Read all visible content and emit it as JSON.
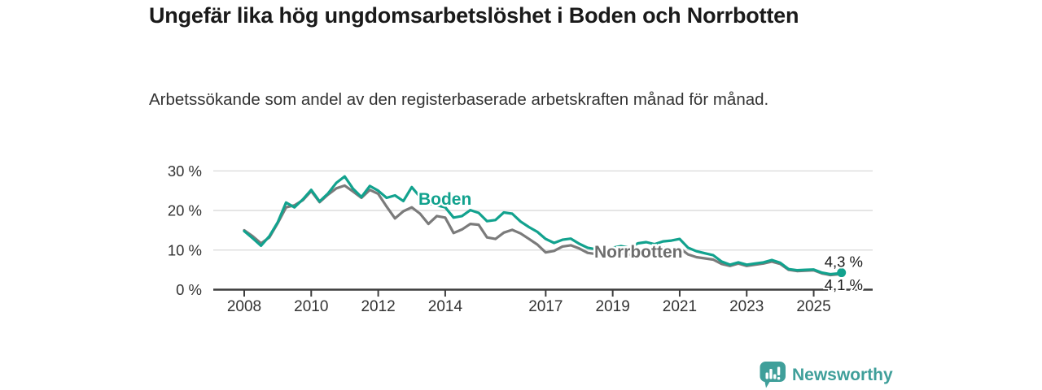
{
  "header": {
    "title": "Ungefär lika hög ungdomsarbetslöshet i Boden och Norrbotten",
    "subtitle": "Arbetssökande som andel av den registerbaserade arbetskraften månad för månad."
  },
  "chart_data": {
    "type": "line",
    "title": "Ungefär lika hög ungdomsarbetslöshet i Boden och Norrbotten",
    "subtitle": "Arbetssökande som andel av den registerbaserade arbetskraften månad för månad.",
    "xlabel": "",
    "ylabel": "",
    "ylim": [
      0,
      30
    ],
    "grid": true,
    "legend_position": "inline-labels",
    "y_ticks": [
      {
        "value": 0,
        "label": "0 %"
      },
      {
        "value": 10,
        "label": "10 %"
      },
      {
        "value": 20,
        "label": "20 %"
      },
      {
        "value": 30,
        "label": "30 %"
      }
    ],
    "x_ticks": [
      2008,
      2010,
      2012,
      2014,
      2017,
      2019,
      2021,
      2023,
      2025
    ],
    "x_range": [
      2008.0,
      2025.83
    ],
    "style": {
      "grid_color": "#d9d9d9",
      "axis_color": "#3d3d3d",
      "tick_label_color": "#333333",
      "end_label_color": "#1a1a1a",
      "label_halo_color": "#ffffff"
    },
    "series": [
      {
        "name": "Boden",
        "color": "#12a28e",
        "label_color": "#12a28e",
        "label_anchor": [
          2013.2,
          21.4
        ],
        "end_label": "4,3 %",
        "end_label_position": "above",
        "end_dot": true,
        "points": [
          [
            2008.0,
            14.8
          ],
          [
            2008.25,
            13.0
          ],
          [
            2008.5,
            11.1
          ],
          [
            2008.75,
            13.5
          ],
          [
            2009.0,
            17.0
          ],
          [
            2009.25,
            22.0
          ],
          [
            2009.5,
            20.8
          ],
          [
            2009.75,
            22.8
          ],
          [
            2010.0,
            25.2
          ],
          [
            2010.25,
            22.3
          ],
          [
            2010.5,
            24.3
          ],
          [
            2010.75,
            27.0
          ],
          [
            2011.0,
            28.6
          ],
          [
            2011.25,
            25.5
          ],
          [
            2011.5,
            23.4
          ],
          [
            2011.75,
            26.2
          ],
          [
            2012.0,
            25.0
          ],
          [
            2012.25,
            23.2
          ],
          [
            2012.5,
            23.8
          ],
          [
            2012.75,
            22.4
          ],
          [
            2013.0,
            25.9
          ],
          [
            2013.25,
            23.4
          ],
          [
            2013.5,
            21.8
          ],
          [
            2013.75,
            21.3
          ],
          [
            2014.0,
            20.8
          ],
          [
            2014.25,
            18.2
          ],
          [
            2014.5,
            18.6
          ],
          [
            2014.75,
            20.1
          ],
          [
            2015.0,
            19.4
          ],
          [
            2015.25,
            17.3
          ],
          [
            2015.5,
            17.6
          ],
          [
            2015.75,
            19.5
          ],
          [
            2016.0,
            19.2
          ],
          [
            2016.25,
            17.2
          ],
          [
            2016.5,
            15.8
          ],
          [
            2016.75,
            14.6
          ],
          [
            2017.0,
            12.8
          ],
          [
            2017.25,
            11.8
          ],
          [
            2017.5,
            12.6
          ],
          [
            2017.75,
            12.9
          ],
          [
            2018.0,
            11.6
          ],
          [
            2018.25,
            10.6
          ],
          [
            2018.5,
            10.2
          ],
          [
            2018.75,
            10.0
          ],
          [
            2019.0,
            10.6
          ],
          [
            2019.25,
            11.0
          ],
          [
            2019.5,
            10.6
          ],
          [
            2019.75,
            11.7
          ],
          [
            2020.0,
            12.0
          ],
          [
            2020.25,
            11.5
          ],
          [
            2020.5,
            12.2
          ],
          [
            2020.75,
            12.4
          ],
          [
            2021.0,
            12.8
          ],
          [
            2021.25,
            10.6
          ],
          [
            2021.5,
            9.7
          ],
          [
            2021.75,
            9.2
          ],
          [
            2022.0,
            8.7
          ],
          [
            2022.25,
            7.1
          ],
          [
            2022.5,
            6.3
          ],
          [
            2022.75,
            6.9
          ],
          [
            2023.0,
            6.3
          ],
          [
            2023.25,
            6.6
          ],
          [
            2023.5,
            6.9
          ],
          [
            2023.75,
            7.5
          ],
          [
            2024.0,
            6.8
          ],
          [
            2024.25,
            5.2
          ],
          [
            2024.5,
            4.9
          ],
          [
            2024.75,
            5.0
          ],
          [
            2025.0,
            5.1
          ],
          [
            2025.25,
            4.3
          ],
          [
            2025.5,
            3.9
          ],
          [
            2025.75,
            4.1
          ],
          [
            2025.83,
            4.3
          ]
        ]
      },
      {
        "name": "Norrbotten",
        "color": "#7b7b7b",
        "label_color": "#6e6e6e",
        "label_anchor": [
          2018.45,
          8.1
        ],
        "end_label": "4,1 %",
        "end_label_position": "below",
        "end_dot": false,
        "points": [
          [
            2008.0,
            15.0
          ],
          [
            2008.25,
            13.5
          ],
          [
            2008.5,
            11.7
          ],
          [
            2008.75,
            13.2
          ],
          [
            2009.0,
            16.8
          ],
          [
            2009.25,
            20.8
          ],
          [
            2009.5,
            21.3
          ],
          [
            2009.75,
            22.6
          ],
          [
            2010.0,
            24.9
          ],
          [
            2010.25,
            22.1
          ],
          [
            2010.5,
            24.0
          ],
          [
            2010.75,
            25.6
          ],
          [
            2011.0,
            26.3
          ],
          [
            2011.25,
            24.8
          ],
          [
            2011.5,
            23.2
          ],
          [
            2011.75,
            25.2
          ],
          [
            2012.0,
            24.2
          ],
          [
            2012.25,
            21.0
          ],
          [
            2012.5,
            18.0
          ],
          [
            2012.75,
            19.8
          ],
          [
            2013.0,
            20.8
          ],
          [
            2013.25,
            19.2
          ],
          [
            2013.5,
            16.6
          ],
          [
            2013.75,
            18.6
          ],
          [
            2014.0,
            18.2
          ],
          [
            2014.25,
            14.3
          ],
          [
            2014.5,
            15.2
          ],
          [
            2014.75,
            16.6
          ],
          [
            2015.0,
            16.4
          ],
          [
            2015.25,
            13.2
          ],
          [
            2015.5,
            12.8
          ],
          [
            2015.75,
            14.4
          ],
          [
            2016.0,
            15.1
          ],
          [
            2016.25,
            14.2
          ],
          [
            2016.5,
            12.8
          ],
          [
            2016.75,
            11.4
          ],
          [
            2017.0,
            9.4
          ],
          [
            2017.25,
            9.8
          ],
          [
            2017.5,
            10.9
          ],
          [
            2017.75,
            11.2
          ],
          [
            2018.0,
            10.4
          ],
          [
            2018.25,
            9.3
          ],
          [
            2018.5,
            9.0
          ],
          [
            2018.75,
            8.6
          ],
          [
            2019.0,
            9.0
          ],
          [
            2019.25,
            9.3
          ],
          [
            2019.5,
            8.8
          ],
          [
            2019.75,
            9.3
          ],
          [
            2020.0,
            9.6
          ],
          [
            2020.25,
            10.2
          ],
          [
            2020.5,
            10.6
          ],
          [
            2020.75,
            10.3
          ],
          [
            2021.0,
            10.5
          ],
          [
            2021.25,
            8.9
          ],
          [
            2021.5,
            8.2
          ],
          [
            2021.75,
            7.9
          ],
          [
            2022.0,
            7.6
          ],
          [
            2022.25,
            6.5
          ],
          [
            2022.5,
            6.0
          ],
          [
            2022.75,
            6.6
          ],
          [
            2023.0,
            6.0
          ],
          [
            2023.25,
            6.3
          ],
          [
            2023.5,
            6.6
          ],
          [
            2023.75,
            7.1
          ],
          [
            2024.0,
            6.5
          ],
          [
            2024.25,
            5.0
          ],
          [
            2024.5,
            4.7
          ],
          [
            2024.75,
            4.8
          ],
          [
            2025.0,
            4.9
          ],
          [
            2025.25,
            4.1
          ],
          [
            2025.5,
            3.7
          ],
          [
            2025.75,
            3.9
          ],
          [
            2025.83,
            4.1
          ]
        ]
      }
    ]
  },
  "footer": {
    "brand": "Newsworthy",
    "brand_color": "#3f9f9a",
    "logo_icon": "newsworthy-bars-bubble-icon"
  }
}
